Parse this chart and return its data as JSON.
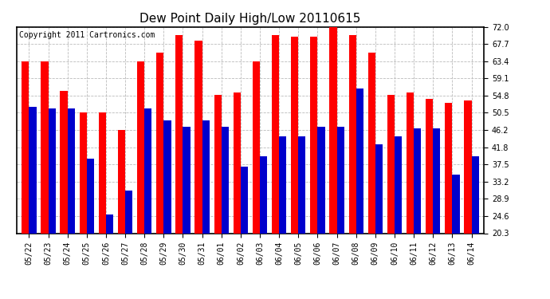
{
  "title": "Dew Point Daily High/Low 20110615",
  "copyright": "Copyright 2011 Cartronics.com",
  "dates": [
    "05/22",
    "05/23",
    "05/24",
    "05/25",
    "05/26",
    "05/27",
    "05/28",
    "05/29",
    "05/30",
    "05/31",
    "06/01",
    "06/02",
    "06/03",
    "06/04",
    "06/05",
    "06/06",
    "06/07",
    "06/08",
    "06/09",
    "06/10",
    "06/11",
    "06/12",
    "06/13",
    "06/14"
  ],
  "highs": [
    63.4,
    63.4,
    56.0,
    50.5,
    50.5,
    46.2,
    63.4,
    65.5,
    70.0,
    68.5,
    55.0,
    55.5,
    63.4,
    70.0,
    69.5,
    69.5,
    72.0,
    70.0,
    65.5,
    55.0,
    55.5,
    54.0,
    53.0,
    53.5
  ],
  "lows": [
    52.0,
    51.5,
    51.5,
    39.0,
    25.0,
    31.0,
    51.5,
    48.5,
    47.0,
    48.5,
    47.0,
    37.0,
    39.5,
    44.5,
    44.5,
    47.0,
    47.0,
    56.5,
    42.5,
    44.5,
    46.5,
    46.5,
    35.0,
    39.5
  ],
  "high_color": "#FF0000",
  "low_color": "#0000CC",
  "bg_color": "#FFFFFF",
  "plot_bg_color": "#FFFFFF",
  "grid_color": "#BBBBBB",
  "ymin": 20.3,
  "ymax": 72.0,
  "yticks": [
    20.3,
    24.6,
    28.9,
    33.2,
    37.5,
    41.8,
    46.2,
    50.5,
    54.8,
    59.1,
    63.4,
    67.7,
    72.0
  ],
  "bar_width": 0.38,
  "title_fontsize": 11,
  "tick_fontsize": 7,
  "copyright_fontsize": 7,
  "figwidth": 6.9,
  "figheight": 3.75,
  "dpi": 100
}
